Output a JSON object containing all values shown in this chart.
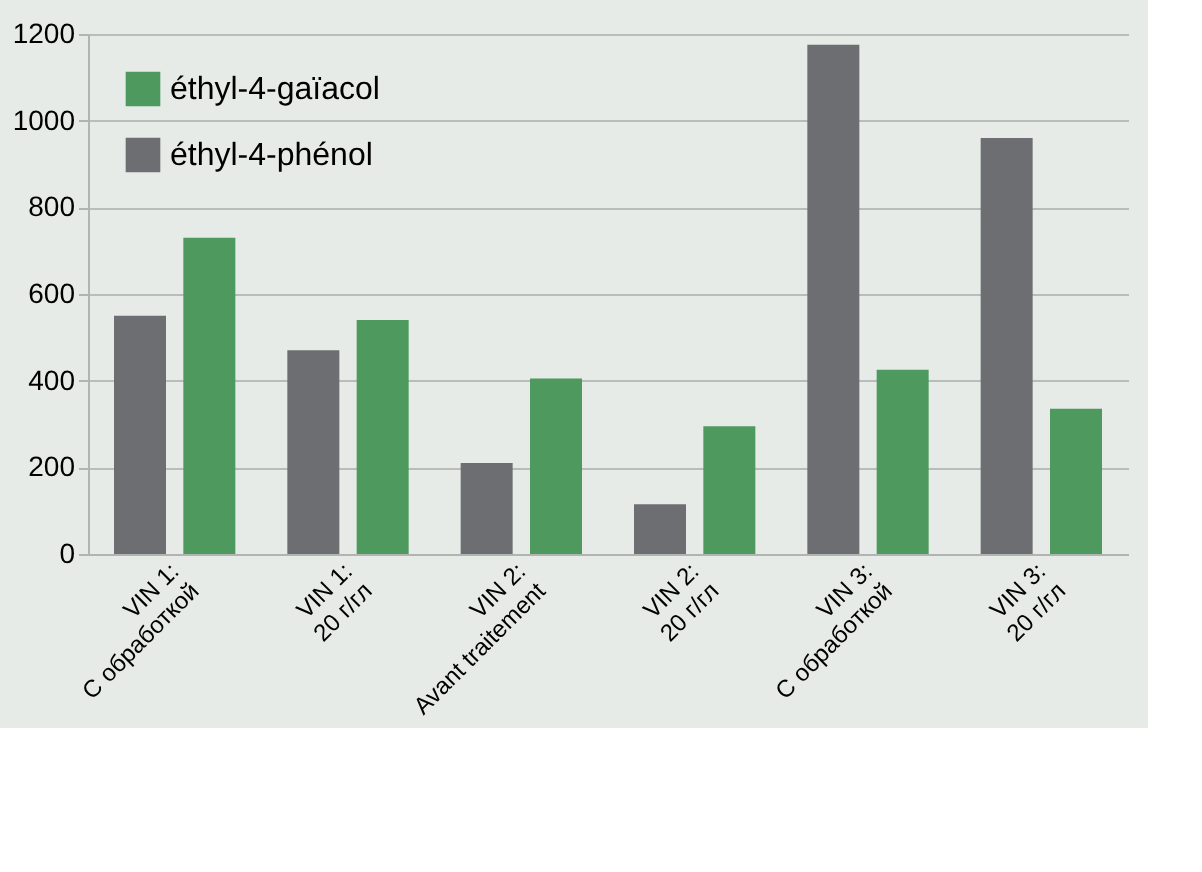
{
  "chart_data": {
    "type": "bar",
    "categories": [
      "VIN 1:\nС обработкой",
      "VIN 1:\n20 г/гл",
      "VIN 2:\nAvant traitement",
      "VIN 2:\n20 г/гл",
      "VIN 3:\nС обработкой",
      "VIN 3:\n20 г/гл"
    ],
    "series": [
      {
        "name": "éthyl-4-gaïacol",
        "color": "#4e9a5e",
        "values": [
          730,
          540,
          405,
          295,
          425,
          335
        ]
      },
      {
        "name": "éthyl-4-phénol",
        "color": "#6d6e71",
        "values": [
          550,
          470,
          210,
          115,
          1175,
          960
        ]
      }
    ],
    "ylim": [
      0,
      1200
    ],
    "yticks": [
      0,
      200,
      400,
      600,
      800,
      1000,
      1200
    ],
    "grid": "y",
    "legend": "top left"
  }
}
